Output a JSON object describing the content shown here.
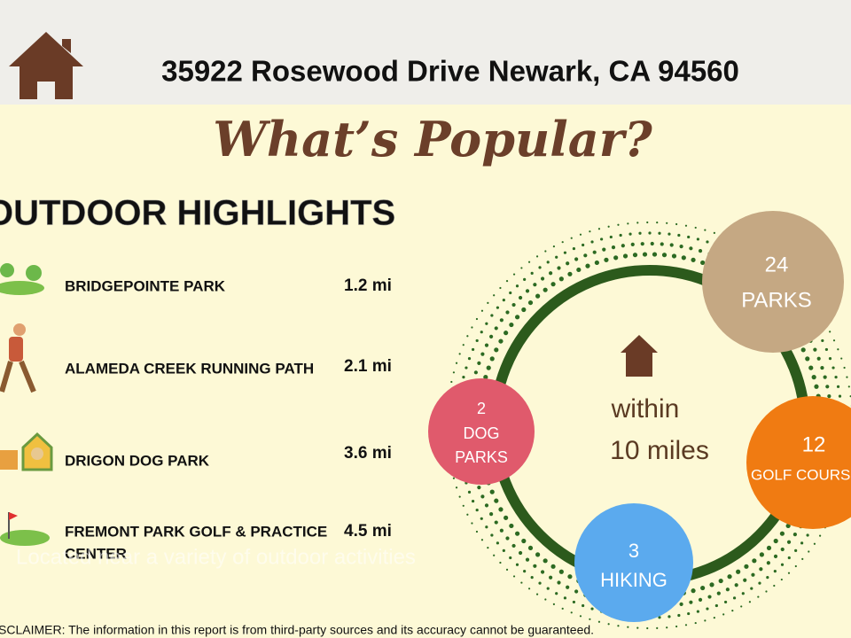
{
  "header": {
    "address": "35922 Rosewood Drive Newark, CA 94560"
  },
  "title": "What’s Popular?",
  "section": {
    "title": "OUTDOOR HIGHLIGHTS",
    "items": [
      {
        "name": "BRIDGEPOINTE PARK",
        "distance": "1.2 mi"
      },
      {
        "name": "ALAMEDA CREEK RUNNING PATH",
        "distance": "2.1 mi"
      },
      {
        "name": "DRIGON DOG PARK",
        "distance": "3.6 mi"
      },
      {
        "name": "FREMONT PARK GOLF & PRACTICE",
        "name_line2": "CENTER",
        "distance": "4.5 mi"
      }
    ],
    "caption": "Located near a variety of outdoor activities"
  },
  "radius": {
    "line1": "within",
    "line2": "10 miles"
  },
  "bubbles": [
    {
      "count": "24",
      "label": "PARKS"
    },
    {
      "count": "12",
      "label": "GOLF COURSES"
    },
    {
      "count": "3",
      "label": "HIKING"
    },
    {
      "count": "2",
      "label": "DOG",
      "label_line2": "PARKS"
    }
  ],
  "disclaimer": "DISCLAIMER: The information in this report is from third-party sources and its accuracy cannot be guaranteed."
}
